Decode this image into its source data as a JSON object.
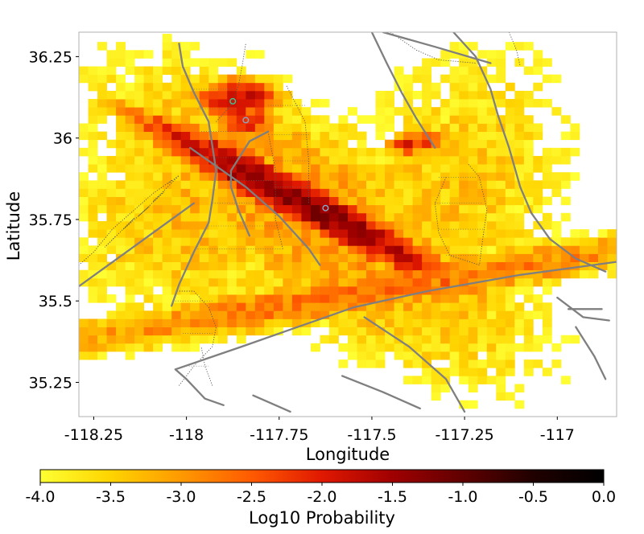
{
  "chart_data": {
    "type": "heatmap",
    "title": "",
    "xlabel": "Longitude",
    "ylabel": "Latitude",
    "xlim": [
      -118.29,
      -116.84
    ],
    "ylim": [
      35.145,
      36.325
    ],
    "x_ticks": [
      {
        "value": -118.25,
        "label": "-118.25"
      },
      {
        "value": -118.0,
        "label": "-118"
      },
      {
        "value": -117.75,
        "label": "-117.75"
      },
      {
        "value": -117.5,
        "label": "-117.5"
      },
      {
        "value": -117.25,
        "label": "-117.25"
      },
      {
        "value": -117.0,
        "label": "-117"
      }
    ],
    "y_ticks": [
      {
        "value": 35.25,
        "label": "35.25"
      },
      {
        "value": 35.5,
        "label": "35.5"
      },
      {
        "value": 35.75,
        "label": "35.75"
      },
      {
        "value": 36.0,
        "label": "36"
      },
      {
        "value": 36.25,
        "label": "36.25"
      }
    ],
    "grid": false,
    "colorbar": {
      "label": "Log10 Probability",
      "range": [
        -4.0,
        0.0
      ],
      "ticks": [
        {
          "value": -4.0,
          "label": "-4.0"
        },
        {
          "value": -3.5,
          "label": "-3.5"
        },
        {
          "value": -3.0,
          "label": "-3.0"
        },
        {
          "value": -2.5,
          "label": "-2.5"
        },
        {
          "value": -2.0,
          "label": "-2.0"
        },
        {
          "value": -1.5,
          "label": "-1.5"
        },
        {
          "value": -1.0,
          "label": "-1.0"
        },
        {
          "value": -0.5,
          "label": "-0.5"
        },
        {
          "value": 0.0,
          "label": "0.0"
        }
      ],
      "colormap": [
        "#ffff33",
        "#ffd400",
        "#ff9900",
        "#ff5a00",
        "#e01800",
        "#a00000",
        "#600000",
        "#200000",
        "#000000"
      ]
    },
    "grid_spacing_deg": 0.025,
    "density_kernels": [
      {
        "lon": -117.7,
        "lat": 35.81,
        "sigma_along": 0.26,
        "sigma_across": 0.035,
        "angle_deg": -36,
        "peak": -1.2
      },
      {
        "lon": -117.86,
        "lat": 36.12,
        "sigma_along": 0.06,
        "sigma_across": 0.04,
        "angle_deg": 0,
        "peak": -1.8
      },
      {
        "lon": -117.84,
        "lat": 36.05,
        "sigma_along": 0.04,
        "sigma_across": 0.03,
        "angle_deg": 0,
        "peak": -2.1
      },
      {
        "lon": -117.65,
        "lat": 35.75,
        "sigma_along": 0.5,
        "sigma_across": 0.2,
        "angle_deg": -45,
        "peak": -3.0
      },
      {
        "lon": -117.4,
        "lat": 35.98,
        "sigma_along": 0.03,
        "sigma_across": 0.02,
        "angle_deg": 0,
        "peak": -2.0
      },
      {
        "lon": -117.35,
        "lat": 35.99,
        "sigma_along": 0.03,
        "sigma_across": 0.02,
        "angle_deg": 0,
        "peak": -2.2
      },
      {
        "lon": -117.5,
        "lat": 35.53,
        "sigma_along": 0.7,
        "sigma_across": 0.05,
        "angle_deg": 13,
        "peak": -2.7
      },
      {
        "lon": -117.95,
        "lat": 35.8,
        "sigma_along": 0.35,
        "sigma_across": 0.25,
        "angle_deg": 70,
        "peak": -3.3
      },
      {
        "lon": -117.3,
        "lat": 35.8,
        "sigma_along": 0.45,
        "sigma_across": 0.22,
        "angle_deg": 75,
        "peak": -3.4
      }
    ],
    "cutoff_log10": -4.0,
    "markers": [
      {
        "lon": -117.875,
        "lat": 36.113,
        "color": "#33cc99"
      },
      {
        "lon": -117.84,
        "lat": 36.055,
        "color": "#88aacc"
      },
      {
        "lon": -117.625,
        "lat": 35.785,
        "color": "#88aacc"
      }
    ],
    "faults_major": [
      [
        [
          -118.29,
          35.545
        ],
        [
          -118.15,
          35.66
        ],
        [
          -117.98,
          35.8
        ]
      ],
      [
        [
          -117.9,
          35.18
        ],
        [
          -117.95,
          35.2
        ],
        [
          -118.0,
          35.26
        ],
        [
          -118.03,
          35.29
        ],
        [
          -117.85,
          35.36
        ],
        [
          -117.7,
          35.42
        ],
        [
          -117.55,
          35.48
        ],
        [
          -117.35,
          35.53
        ],
        [
          -117.1,
          35.58
        ],
        [
          -116.84,
          35.62
        ]
      ],
      [
        [
          -118.04,
          35.485
        ],
        [
          -118.02,
          35.55
        ],
        [
          -117.98,
          35.65
        ],
        [
          -117.94,
          35.74
        ],
        [
          -117.93,
          35.81
        ],
        [
          -117.92,
          35.9
        ],
        [
          -117.94,
          36.05
        ],
        [
          -117.98,
          36.14
        ],
        [
          -118.01,
          36.22
        ],
        [
          -118.02,
          36.29
        ]
      ],
      [
        [
          -117.83,
          35.7
        ],
        [
          -117.86,
          35.78
        ],
        [
          -117.88,
          35.85
        ],
        [
          -117.88,
          35.9
        ],
        [
          -117.83,
          35.99
        ],
        [
          -117.78,
          36.02
        ]
      ],
      [
        [
          -117.99,
          35.97
        ],
        [
          -117.84,
          35.85
        ],
        [
          -117.75,
          35.76
        ],
        [
          -117.67,
          35.66
        ],
        [
          -117.64,
          35.61
        ]
      ],
      [
        [
          -117.5,
          36.325
        ],
        [
          -117.46,
          36.23
        ],
        [
          -117.42,
          36.14
        ],
        [
          -117.38,
          36.06
        ],
        [
          -117.33,
          35.97
        ]
      ],
      [
        [
          -117.28,
          36.325
        ],
        [
          -117.22,
          36.25
        ],
        [
          -117.18,
          36.15
        ],
        [
          -117.16,
          36.07
        ],
        [
          -117.13,
          35.97
        ],
        [
          -117.1,
          35.85
        ],
        [
          -117.07,
          35.77
        ],
        [
          -117.02,
          35.69
        ],
        [
          -116.95,
          35.63
        ],
        [
          -116.87,
          35.59
        ]
      ],
      [
        [
          -117.47,
          36.325
        ],
        [
          -117.33,
          36.28
        ],
        [
          -117.18,
          36.23
        ]
      ],
      [
        [
          -117.52,
          35.45
        ],
        [
          -117.4,
          35.36
        ],
        [
          -117.3,
          35.26
        ],
        [
          -117.25,
          35.16
        ]
      ],
      [
        [
          -117.58,
          35.27
        ],
        [
          -117.47,
          35.22
        ],
        [
          -117.37,
          35.17
        ]
      ],
      [
        [
          -117.82,
          35.21
        ],
        [
          -117.72,
          35.16
        ]
      ],
      [
        [
          -116.95,
          35.42
        ],
        [
          -116.9,
          35.33
        ],
        [
          -116.87,
          35.26
        ]
      ],
      [
        [
          -116.97,
          35.475
        ],
        [
          -116.88,
          35.475
        ]
      ],
      [
        [
          -117.0,
          35.51
        ],
        [
          -116.93,
          35.45
        ],
        [
          -116.86,
          35.44
        ]
      ]
    ],
    "faults_minor": [
      [
        [
          -118.04,
          35.87
        ],
        [
          -118.09,
          35.83
        ],
        [
          -118.14,
          35.78
        ],
        [
          -118.2,
          35.72
        ],
        [
          -118.25,
          35.65
        ],
        [
          -118.29,
          35.61
        ]
      ],
      [
        [
          -118.05,
          35.86
        ],
        [
          -118.02,
          35.885
        ],
        [
          -118.09,
          35.805
        ],
        [
          -118.06,
          35.835
        ],
        [
          -118.13,
          35.76
        ],
        [
          -118.1,
          35.79
        ],
        [
          -118.17,
          35.72
        ],
        [
          -118.14,
          35.755
        ],
        [
          -118.22,
          35.665
        ],
        [
          -118.19,
          35.7
        ]
      ],
      [
        [
          -118.02,
          35.24
        ],
        [
          -117.98,
          35.3
        ],
        [
          -117.93,
          35.36
        ],
        [
          -117.92,
          35.42
        ],
        [
          -117.94,
          35.48
        ],
        [
          -117.98,
          35.53
        ],
        [
          -118.03,
          35.53
        ]
      ],
      [
        [
          -117.93,
          35.24
        ],
        [
          -117.95,
          35.3
        ],
        [
          -117.96,
          35.36
        ]
      ],
      [
        [
          -117.92,
          36.05
        ],
        [
          -117.88,
          36.1
        ],
        [
          -117.86,
          36.16
        ],
        [
          -117.85,
          36.22
        ],
        [
          -117.84,
          36.29
        ]
      ],
      [
        [
          -117.78,
          36.02
        ],
        [
          -117.76,
          35.9
        ],
        [
          -117.76,
          35.75
        ],
        [
          -117.74,
          35.66
        ]
      ],
      [
        [
          -117.73,
          36.16
        ],
        [
          -117.68,
          36.05
        ],
        [
          -117.67,
          35.93
        ],
        [
          -117.67,
          35.8
        ]
      ],
      [
        [
          -117.45,
          36.325
        ],
        [
          -117.38,
          36.27
        ],
        [
          -117.32,
          36.24
        ],
        [
          -117.22,
          36.23
        ]
      ],
      [
        [
          -117.13,
          36.325
        ],
        [
          -117.11,
          36.27
        ],
        [
          -117.1,
          36.22
        ]
      ],
      [
        [
          -117.3,
          35.88
        ],
        [
          -117.33,
          35.8
        ],
        [
          -117.32,
          35.71
        ],
        [
          -117.29,
          35.64
        ],
        [
          -117.21,
          35.61
        ],
        [
          -117.2,
          35.7
        ],
        [
          -117.19,
          35.78
        ],
        [
          -117.21,
          35.88
        ],
        [
          -117.24,
          35.92
        ]
      ]
    ],
    "fault_ticks_minor": [
      [
        [
          -117.98,
          36.15
        ],
        [
          -117.87,
          36.15
        ]
      ],
      [
        [
          -117.97,
          36.09
        ],
        [
          -117.86,
          36.09
        ]
      ],
      [
        [
          -117.96,
          36.02
        ],
        [
          -117.82,
          36.02
        ]
      ],
      [
        [
          -117.94,
          35.94
        ],
        [
          -117.78,
          35.94
        ]
      ],
      [
        [
          -117.93,
          35.87
        ],
        [
          -117.77,
          35.87
        ]
      ],
      [
        [
          -117.93,
          35.8
        ],
        [
          -117.77,
          35.8
        ]
      ],
      [
        [
          -117.94,
          35.73
        ],
        [
          -117.75,
          35.73
        ]
      ],
      [
        [
          -117.97,
          35.66
        ],
        [
          -117.74,
          35.66
        ]
      ],
      [
        [
          -117.78,
          36.1
        ],
        [
          -117.68,
          36.1
        ]
      ],
      [
        [
          -117.77,
          36.01
        ],
        [
          -117.67,
          36.01
        ]
      ],
      [
        [
          -117.76,
          35.93
        ],
        [
          -117.67,
          35.93
        ]
      ],
      [
        [
          -117.76,
          35.85
        ],
        [
          -117.67,
          35.85
        ]
      ],
      [
        [
          -117.32,
          35.88
        ],
        [
          -117.22,
          35.88
        ]
      ],
      [
        [
          -117.33,
          35.8
        ],
        [
          -117.2,
          35.8
        ]
      ],
      [
        [
          -117.32,
          35.72
        ],
        [
          -117.2,
          35.72
        ]
      ],
      [
        [
          -117.3,
          35.64
        ],
        [
          -117.21,
          35.64
        ]
      ],
      [
        [
          -118.03,
          35.5
        ],
        [
          -117.93,
          35.5
        ]
      ],
      [
        [
          -118.01,
          35.4
        ],
        [
          -117.93,
          35.4
        ]
      ],
      [
        [
          -118.0,
          35.3
        ],
        [
          -117.94,
          35.3
        ]
      ]
    ]
  }
}
